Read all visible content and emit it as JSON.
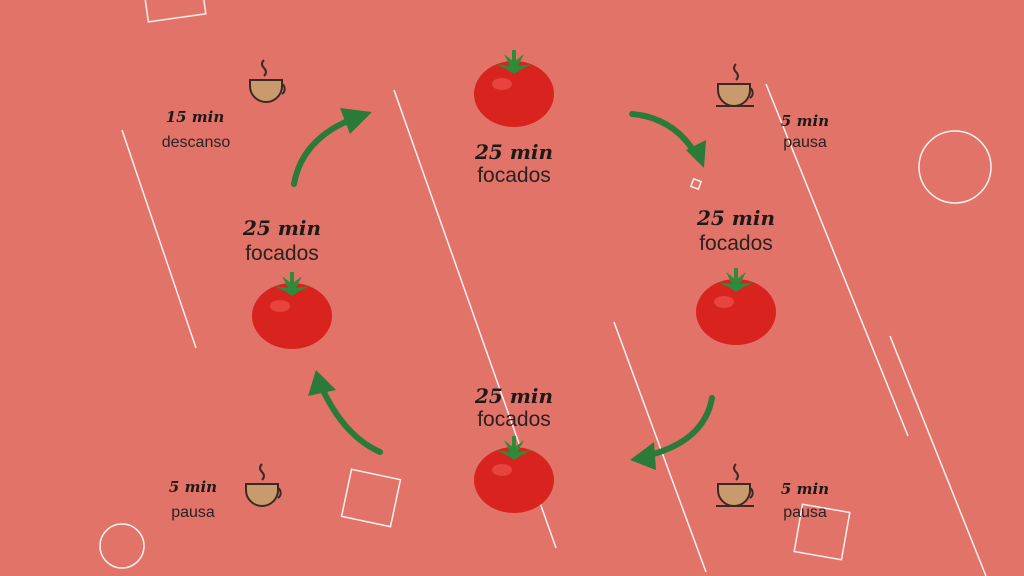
{
  "steps": [
    {
      "time": "25 min",
      "label": "focados"
    },
    {
      "time": "5 min",
      "label": "pausa"
    },
    {
      "time": "25 min",
      "label": "focados"
    },
    {
      "time": "5 min",
      "label": "pausa"
    },
    {
      "time": "25 min",
      "label": "focados"
    },
    {
      "time": "5 min",
      "label": "pausa"
    },
    {
      "time": "25 min",
      "label": "focados"
    },
    {
      "time": "15 min",
      "label": "descanso"
    }
  ],
  "colors": {
    "background": "#e27368",
    "tomato": "#d9231f",
    "leaf": "#2f8a3a",
    "arrow": "#2a7a38",
    "cup": "#c89a6e",
    "line": "#ffffff"
  },
  "icons": [
    "tomato-icon",
    "coffee-cup-icon",
    "arrow-icon"
  ]
}
